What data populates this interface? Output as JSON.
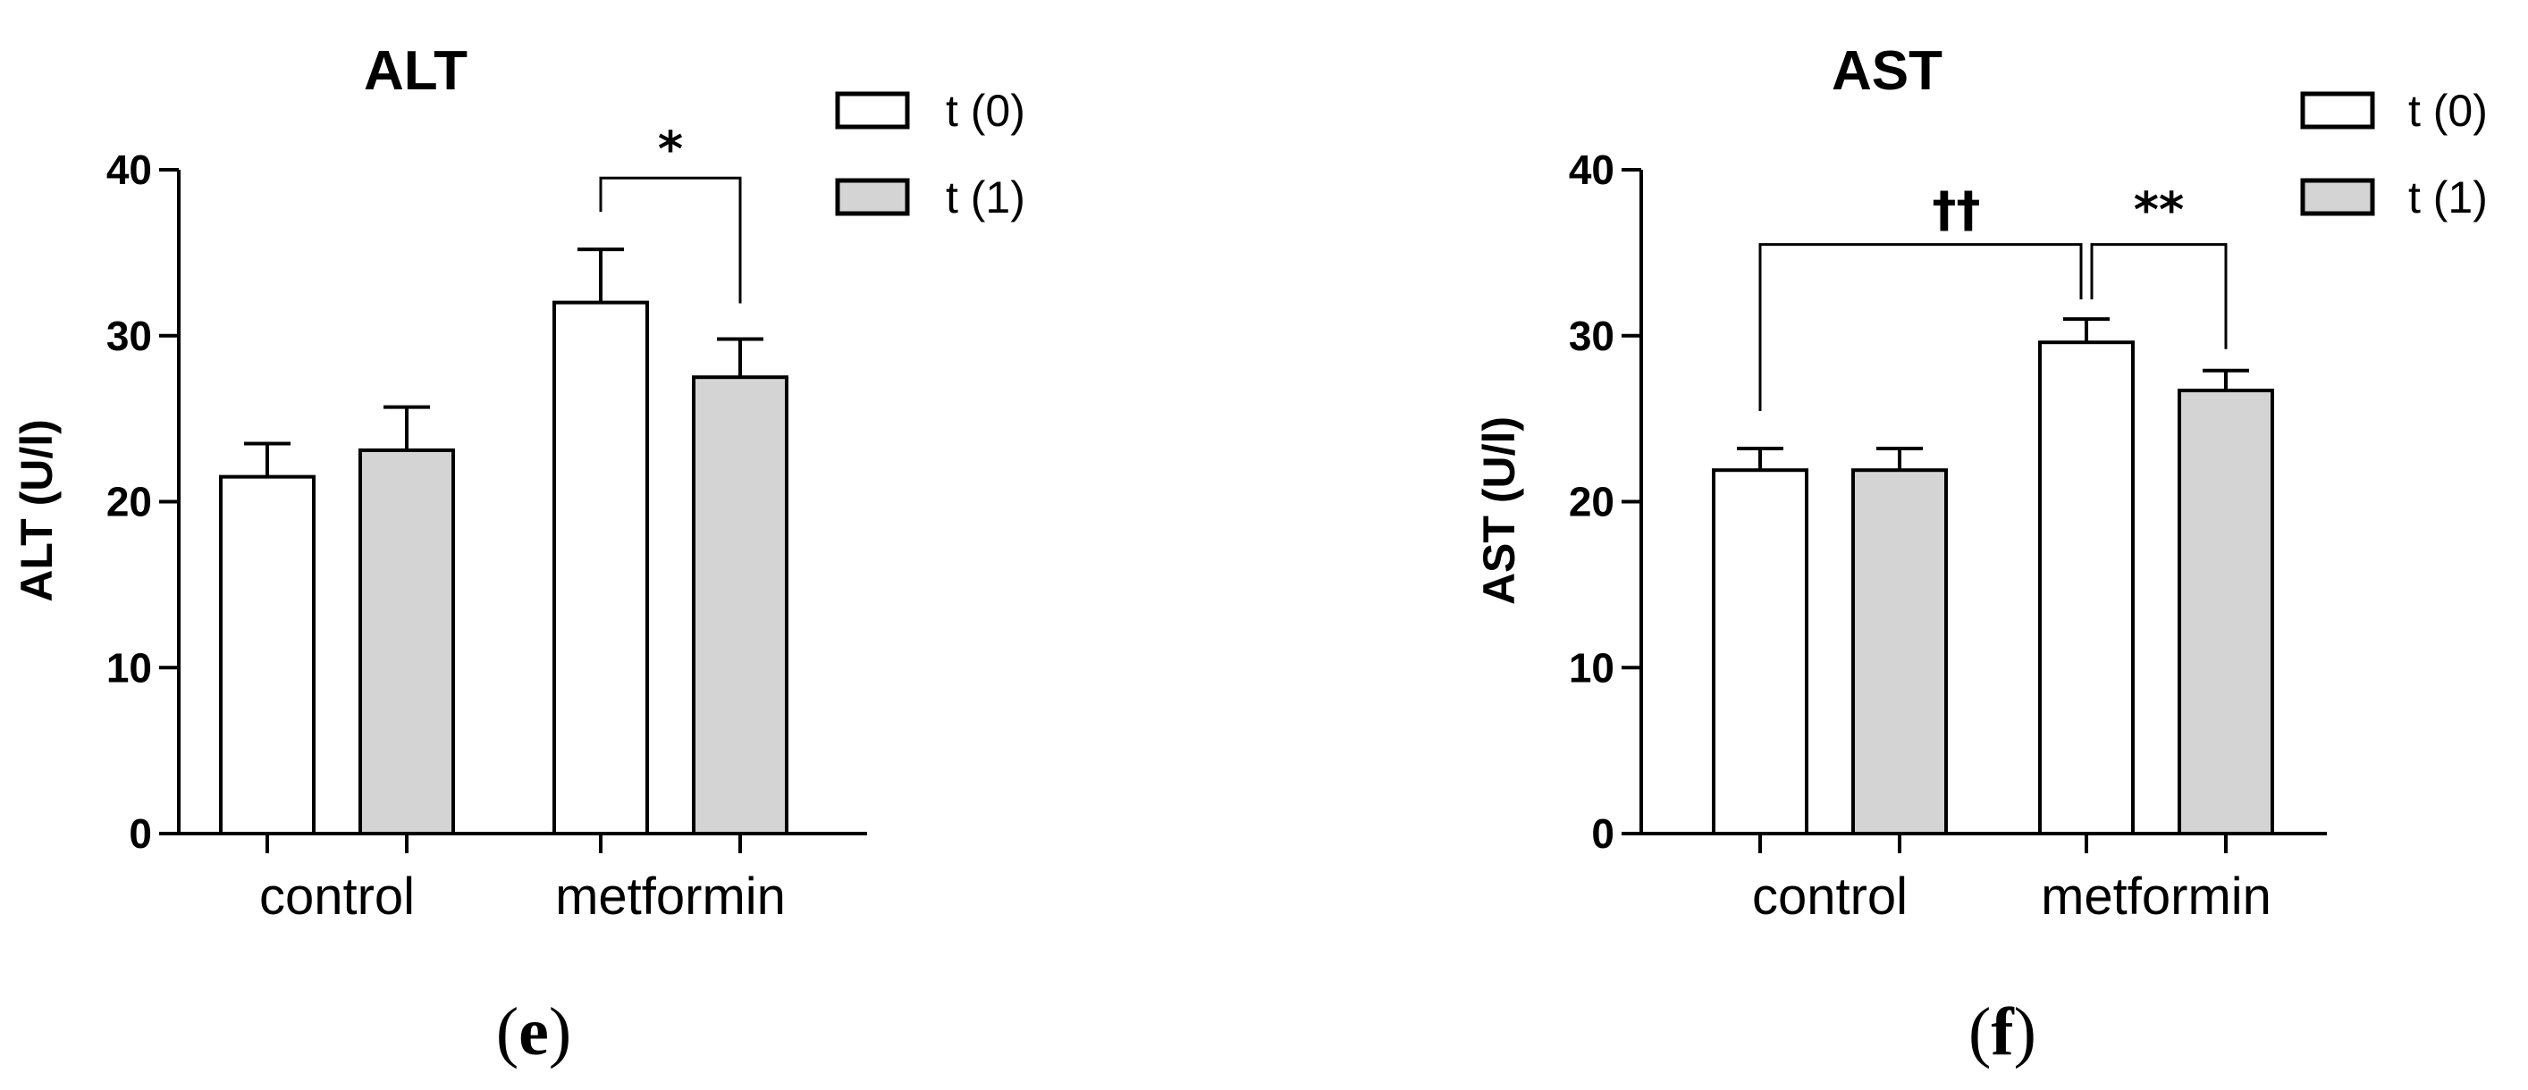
{
  "chart_data": [
    {
      "type": "bar",
      "title": "ALT",
      "ylabel": "ALT (U/l)",
      "xlabel": "",
      "ylim": [
        0,
        40
      ],
      "yticks": [
        0,
        10,
        20,
        30,
        40
      ],
      "categories": [
        "control",
        "metformin"
      ],
      "series": [
        {
          "name": "t (0)",
          "fill": "#ffffff",
          "values": [
            21.5,
            32.0
          ],
          "errors": [
            2.0,
            3.2
          ]
        },
        {
          "name": "t (1)",
          "fill": "#d4d4d4",
          "values": [
            23.1,
            27.5
          ],
          "errors": [
            2.6,
            2.3
          ]
        }
      ],
      "legend": "top-right",
      "annotations": [
        {
          "text": "*",
          "from": {
            "category": 1,
            "series": 0
          },
          "to": {
            "category": 1,
            "series": 1
          }
        }
      ],
      "panel_label": {
        "open": "(",
        "letter": "e",
        "close": ")"
      }
    },
    {
      "type": "bar",
      "title": "AST",
      "ylabel": "AST (U/l)",
      "xlabel": "",
      "ylim": [
        0,
        40
      ],
      "yticks": [
        0,
        10,
        20,
        30,
        40
      ],
      "categories": [
        "control",
        "metformin"
      ],
      "series": [
        {
          "name": "t (0)",
          "fill": "#ffffff",
          "values": [
            21.9,
            29.6
          ],
          "errors": [
            1.3,
            1.4
          ]
        },
        {
          "name": "t (1)",
          "fill": "#d4d4d4",
          "values": [
            21.9,
            26.7
          ],
          "errors": [
            1.3,
            1.2
          ]
        }
      ],
      "legend": "top-right",
      "annotations": [
        {
          "text": "††",
          "from": {
            "category": 0,
            "series": 0
          },
          "to": {
            "category": 1,
            "series": 0
          }
        },
        {
          "text": "**",
          "from": {
            "category": 1,
            "series": 0
          },
          "to": {
            "category": 1,
            "series": 1
          }
        }
      ],
      "panel_label": {
        "open": "(",
        "letter": "f",
        "close": ")"
      }
    }
  ]
}
